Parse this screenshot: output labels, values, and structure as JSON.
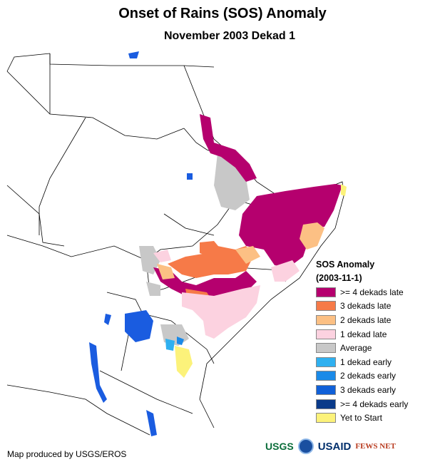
{
  "title": "Onset of Rains (SOS) Anomaly",
  "subtitle": "November 2003 Dekad 1",
  "legend": {
    "title": "SOS Anomaly",
    "subtitle": "(2003-11-1)",
    "items": [
      {
        "label": ">= 4 dekads late",
        "color": "#b5006e"
      },
      {
        "label": "3 dekads late",
        "color": "#f67a48"
      },
      {
        "label": "2 dekads late",
        "color": "#fcc084"
      },
      {
        "label": "1 dekad late",
        "color": "#fcd2e0"
      },
      {
        "label": "Average",
        "color": "#c8c8c8"
      },
      {
        "label": "1 dekad early",
        "color": "#2fb0f0"
      },
      {
        "label": "2 dekads early",
        "color": "#1a8ae8"
      },
      {
        "label": "3 dekads early",
        "color": "#1060d8"
      },
      {
        "label": ">= 4 dekads early",
        "color": "#0a3a8a"
      },
      {
        "label": "Yet to Start",
        "color": "#fcf27a"
      }
    ]
  },
  "credit": "Map produced by USGS/EROS",
  "logos": {
    "usgs": "USGS",
    "usaid": "USAID",
    "fews": "FEWS NET"
  },
  "colors": {
    "water": "#1a5ce0",
    "border": "#000000"
  }
}
